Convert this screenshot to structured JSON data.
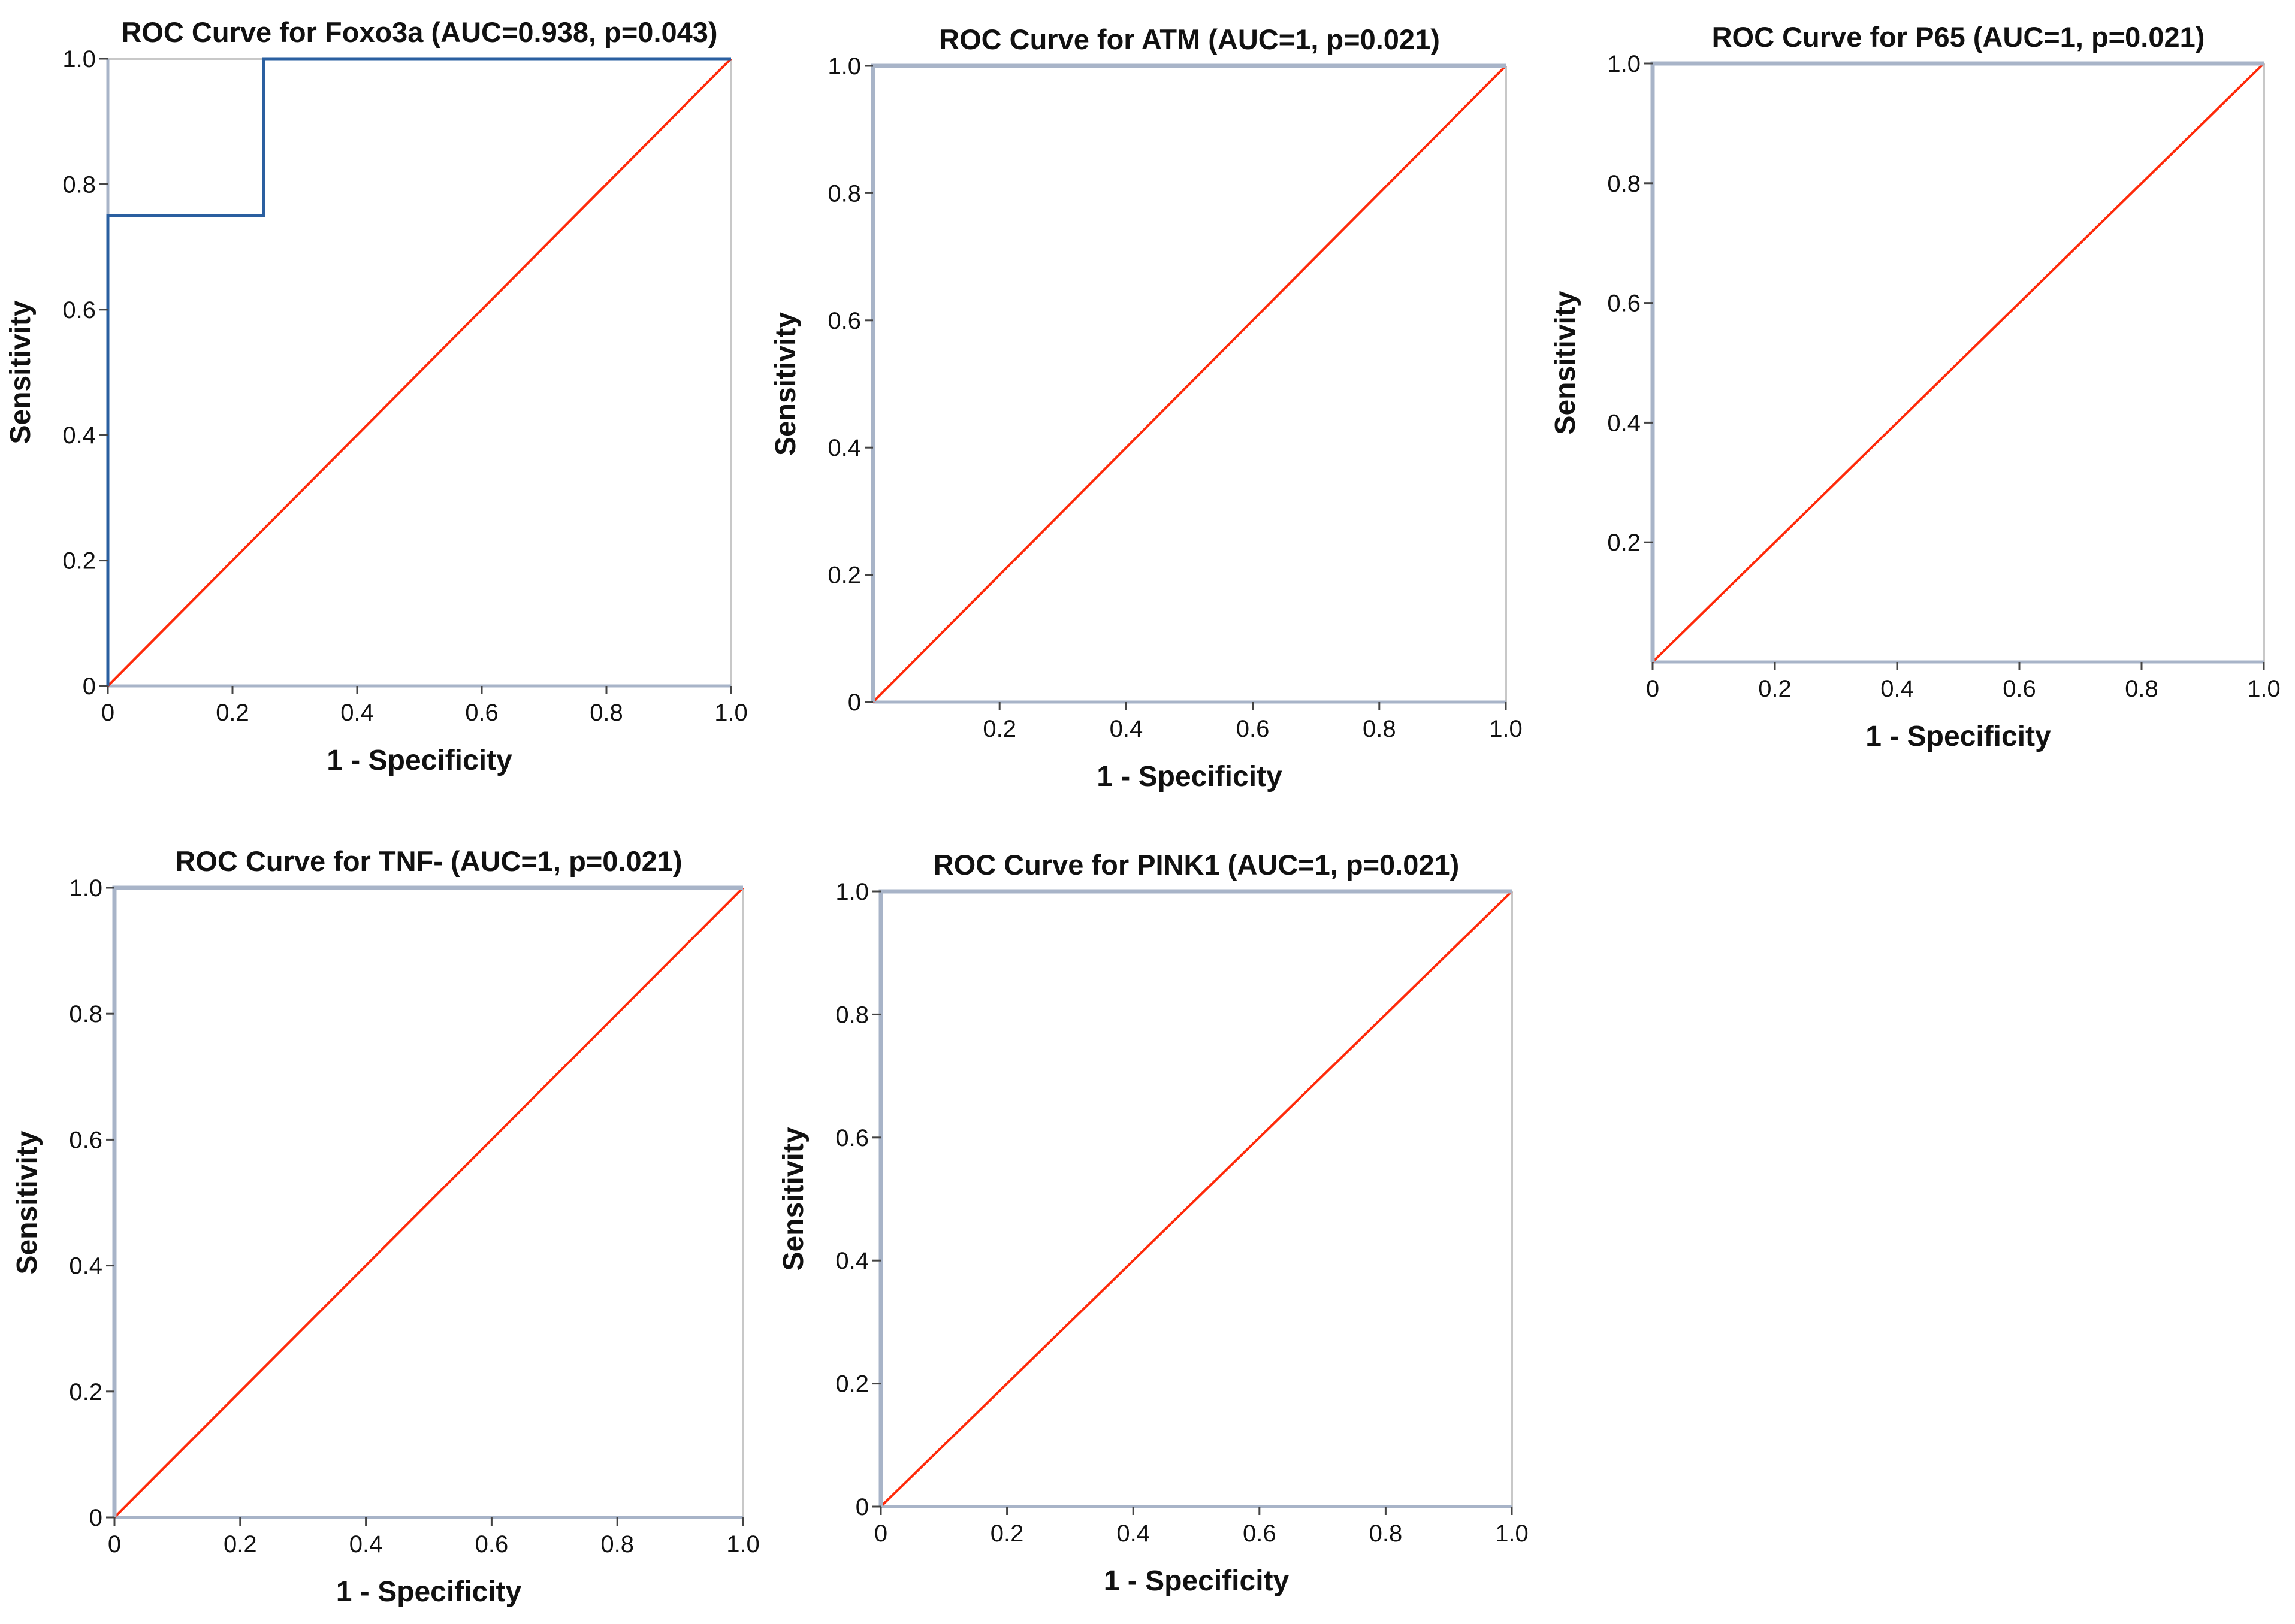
{
  "colors": {
    "roc_curve": "#2a5fa0",
    "reference_line": "#ff2a0a",
    "axis": "#a8b4c8",
    "frame": "#c8c8c8"
  },
  "chart_data": [
    {
      "type": "line",
      "title": "ROC Curve for Foxo3a (AUC=0.938, p=0.043)",
      "xlabel": "1 - Specificity",
      "ylabel": "Sensitivity",
      "xlim": [
        0,
        1
      ],
      "ylim": [
        0,
        1
      ],
      "x_ticks": [
        "0",
        "0.2",
        "0.4",
        "0.6",
        "0.8",
        "1.0"
      ],
      "y_ticks": [
        "0",
        "0.2",
        "0.4",
        "0.6",
        "0.8",
        "1.0"
      ],
      "series": [
        {
          "name": "ROC curve",
          "x": [
            0,
            0,
            0.25,
            0.25,
            1
          ],
          "y": [
            0,
            0.75,
            0.75,
            1,
            1
          ]
        },
        {
          "name": "Reference line",
          "x": [
            0,
            1
          ],
          "y": [
            0,
            1
          ]
        }
      ]
    },
    {
      "type": "line",
      "title": "ROC Curve for ATM (AUC=1, p=0.021)",
      "xlabel": "1 - Specificity",
      "ylabel": "Sensitivity",
      "xlim": [
        0,
        1
      ],
      "ylim": [
        0,
        1
      ],
      "x_ticks": [
        "0.2",
        "0.4",
        "0.6",
        "0.8",
        "1.0"
      ],
      "y_ticks": [
        "0",
        "0.2",
        "0.4",
        "0.6",
        "0.8",
        "1.0"
      ],
      "series": [
        {
          "name": "ROC curve",
          "x": [
            0,
            0,
            1
          ],
          "y": [
            0,
            1,
            1
          ]
        },
        {
          "name": "Reference line",
          "x": [
            0,
            1
          ],
          "y": [
            0,
            1
          ]
        }
      ]
    },
    {
      "type": "line",
      "title": "ROC Curve for P65 (AUC=1, p=0.021)",
      "xlabel": "1 - Specificity",
      "ylabel": "Sensitivity",
      "xlim": [
        0,
        1
      ],
      "ylim": [
        0,
        1
      ],
      "x_ticks": [
        "0",
        "0.2",
        "0.4",
        "0.6",
        "0.8",
        "1.0"
      ],
      "y_ticks": [
        "0.2",
        "0.4",
        "0.6",
        "0.8",
        "1.0"
      ],
      "series": [
        {
          "name": "ROC curve",
          "x": [
            0,
            0,
            1
          ],
          "y": [
            0,
            1,
            1
          ]
        },
        {
          "name": "Reference line",
          "x": [
            0,
            1
          ],
          "y": [
            0,
            1
          ]
        }
      ]
    },
    {
      "type": "line",
      "title": "ROC Curve for TNF- (AUC=1, p=0.021)",
      "xlabel": "1 - Specificity",
      "ylabel": "Sensitivity",
      "xlim": [
        0,
        1
      ],
      "ylim": [
        0,
        1
      ],
      "x_ticks": [
        "0",
        "0.2",
        "0.4",
        "0.6",
        "0.8",
        "1.0"
      ],
      "y_ticks": [
        "0",
        "0.2",
        "0.4",
        "0.6",
        "0.8",
        "1.0"
      ],
      "series": [
        {
          "name": "ROC curve",
          "x": [
            0,
            0,
            1
          ],
          "y": [
            0,
            1,
            1
          ]
        },
        {
          "name": "Reference line",
          "x": [
            0,
            1
          ],
          "y": [
            0,
            1
          ]
        }
      ]
    },
    {
      "type": "line",
      "title": "ROC Curve for PINK1 (AUC=1, p=0.021)",
      "xlabel": "1 - Specificity",
      "ylabel": "Sensitivity",
      "xlim": [
        0,
        1
      ],
      "ylim": [
        0,
        1
      ],
      "x_ticks": [
        "0",
        "0.2",
        "0.4",
        "0.6",
        "0.8",
        "1.0"
      ],
      "y_ticks": [
        "0",
        "0.2",
        "0.4",
        "0.6",
        "0.8",
        "1.0"
      ],
      "series": [
        {
          "name": "ROC curve",
          "x": [
            0,
            0,
            1
          ],
          "y": [
            0,
            1,
            1
          ]
        },
        {
          "name": "Reference line",
          "x": [
            0,
            1
          ],
          "y": [
            0,
            1
          ]
        }
      ]
    }
  ]
}
